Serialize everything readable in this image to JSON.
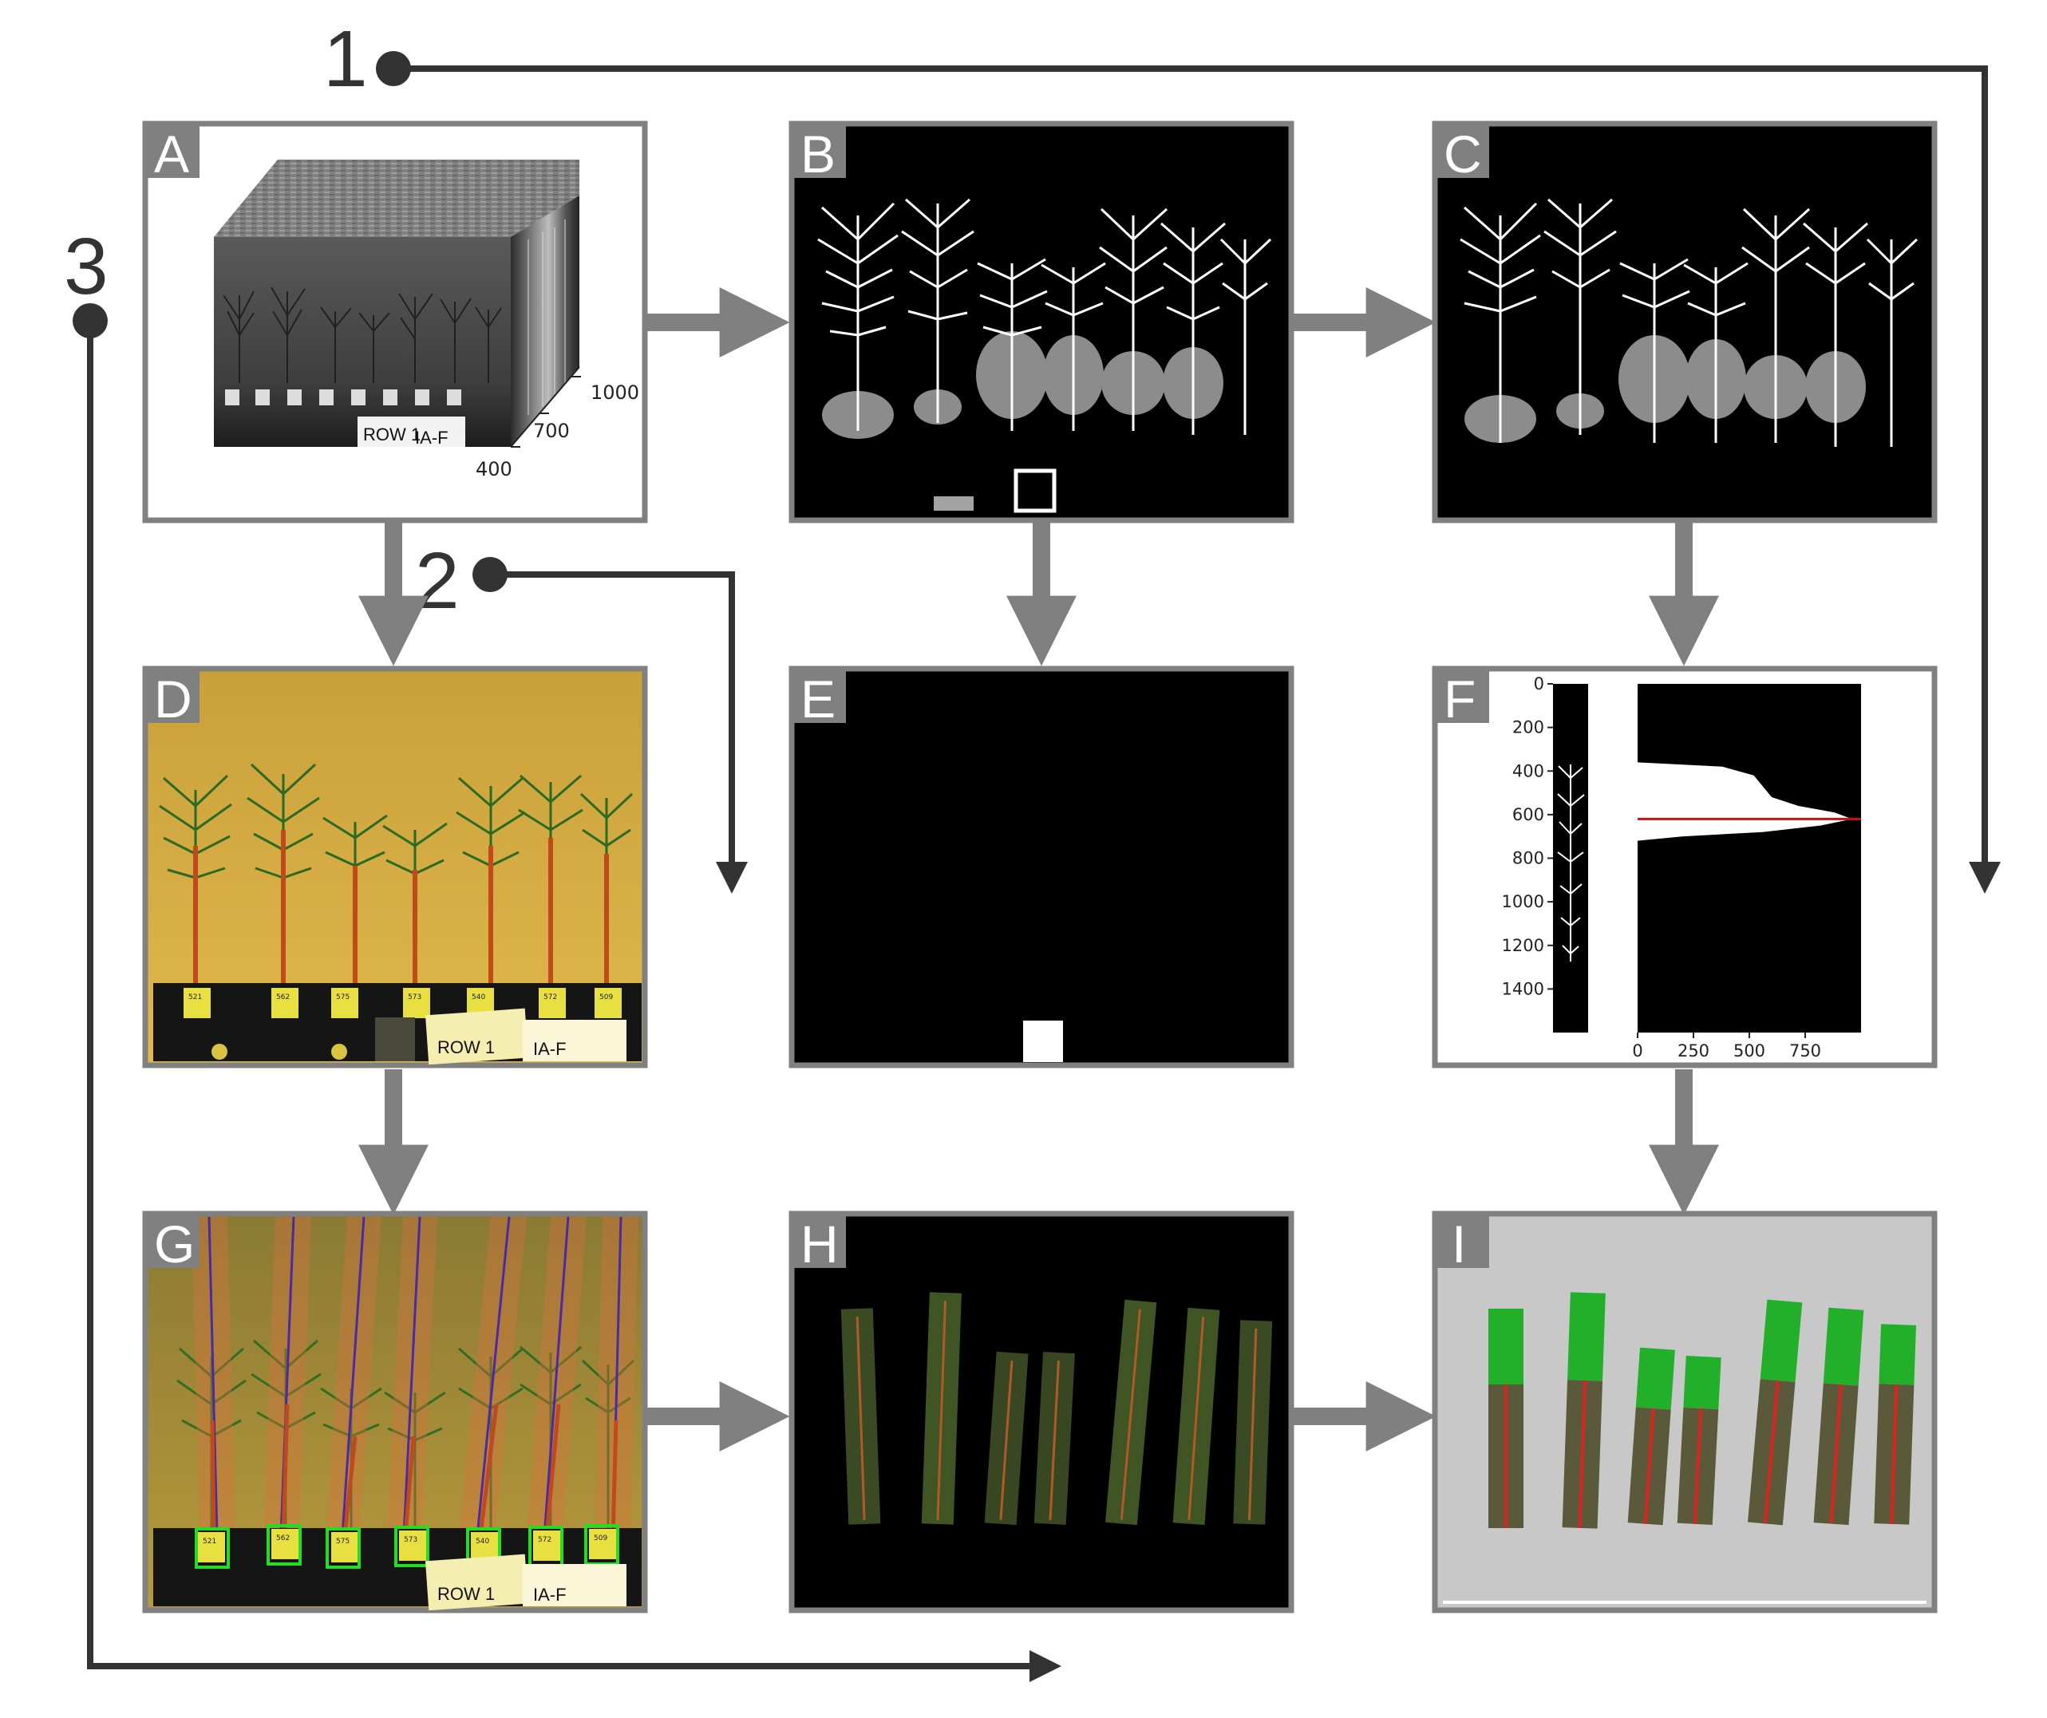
{
  "colors": {
    "panel_border": "#808080",
    "flow_arrow": "#808080",
    "step_line": "#333333",
    "profile_line": "#cc1111",
    "detect_box": "#22dd22",
    "stem": "#cc4422",
    "needle_green": "#22b02a"
  },
  "steps": [
    {
      "id": "1",
      "label": "1"
    },
    {
      "id": "2",
      "label": "2"
    },
    {
      "id": "3",
      "label": "3"
    }
  ],
  "panels": {
    "A": {
      "letter": "A",
      "axis_ticks": [
        "1000",
        "700",
        "400"
      ],
      "sign_text": "IA-F",
      "sign_small": "ROW 1"
    },
    "B": {
      "letter": "B"
    },
    "C": {
      "letter": "C"
    },
    "D": {
      "letter": "D",
      "sign_text": "IA-F",
      "sign_small": "ROW 1",
      "pot_labels": [
        "521",
        "562",
        "575",
        "573",
        "540",
        "572",
        "509"
      ]
    },
    "E": {
      "letter": "E"
    },
    "F": {
      "letter": "F",
      "y_ticks": [
        "0",
        "200",
        "400",
        "600",
        "800",
        "1000",
        "1200",
        "1400"
      ],
      "x_ticks": [
        "0",
        "250",
        "500",
        "750"
      ]
    },
    "G": {
      "letter": "G",
      "sign_text": "IA-F",
      "sign_small": "ROW 1",
      "pot_labels": [
        "521",
        "562",
        "575",
        "573",
        "540",
        "572",
        "509"
      ]
    },
    "H": {
      "letter": "H"
    },
    "I": {
      "letter": "I"
    }
  },
  "chart_data": {
    "type": "area",
    "orientation": "horizontal",
    "x_ticks": [
      0,
      250,
      500,
      750
    ],
    "y_ticks": [
      0,
      200,
      400,
      600,
      800,
      1000,
      1200,
      1400
    ],
    "ylim": [
      1600,
      0
    ],
    "xlim": [
      0,
      1000
    ],
    "profile": [
      {
        "y": 360,
        "x": 0
      },
      {
        "y": 380,
        "x": 380
      },
      {
        "y": 420,
        "x": 520
      },
      {
        "y": 470,
        "x": 560
      },
      {
        "y": 520,
        "x": 600
      },
      {
        "y": 560,
        "x": 720
      },
      {
        "y": 590,
        "x": 880
      },
      {
        "y": 620,
        "x": 960
      },
      {
        "y": 650,
        "x": 820
      },
      {
        "y": 680,
        "x": 560
      },
      {
        "y": 700,
        "x": 200
      },
      {
        "y": 720,
        "x": 0
      }
    ],
    "marker_line_y": 620
  }
}
